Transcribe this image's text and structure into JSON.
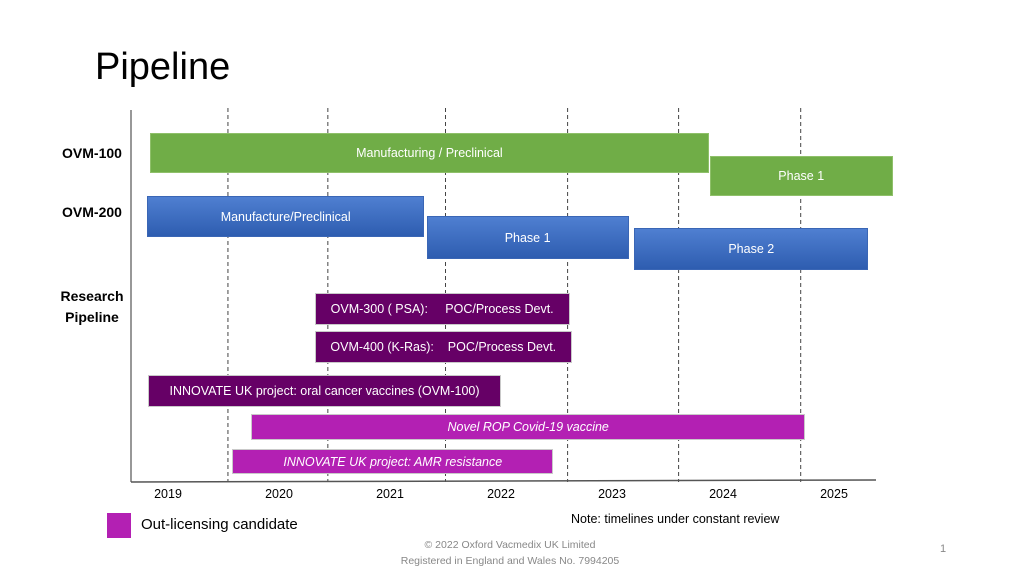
{
  "title": "Pipeline",
  "chart_data": {
    "type": "gantt",
    "x_unit": "year",
    "xlim": [
      2018.7,
      2025.5
    ],
    "x_ticks": [
      "2019",
      "2020",
      "2021",
      "2022",
      "2023",
      "2024",
      "2025"
    ],
    "x_tick_values": [
      2019,
      2020,
      2021,
      2022,
      2023,
      2024,
      2025
    ],
    "year_dividers": [
      2019.54,
      2020.44,
      2021.5,
      2022.6,
      2023.6,
      2024.7
    ],
    "row_labels": [
      "OVM-100",
      "OVM-200",
      "Research Pipeline"
    ],
    "bars": [
      {
        "label": "Manufacturing / Preclinical",
        "group": "OVM-100",
        "start": 2018.84,
        "end": 2023.87,
        "color": "#70ad47",
        "italic": false
      },
      {
        "label": "Phase 1",
        "group": "OVM-100",
        "start": 2023.88,
        "end": 2025.53,
        "color": "#70ad47",
        "italic": false
      },
      {
        "label": "Manufacture/Preclinical",
        "group": "OVM-200",
        "start": 2018.81,
        "end": 2021.31,
        "color": "#4472c4",
        "italic": false
      },
      {
        "label": "Phase 1",
        "group": "OVM-200",
        "start": 2021.33,
        "end": 2023.15,
        "color": "#4472c4",
        "italic": false
      },
      {
        "label": "Phase 2",
        "group": "OVM-200",
        "start": 2023.2,
        "end": 2025.31,
        "color": "#4472c4",
        "italic": false
      },
      {
        "label": "OVM-300 ( PSA):     POC/Process Devt.",
        "group": "Research Pipeline",
        "start": 2020.32,
        "end": 2022.62,
        "color": "#660066",
        "italic": false
      },
      {
        "label": "OVM-400 (K-Ras):    POC/Process Devt.",
        "group": "Research Pipeline",
        "start": 2020.32,
        "end": 2022.64,
        "color": "#660066",
        "italic": false
      },
      {
        "label": "INNOVATE UK project: oral cancer vaccines (OVM-100)",
        "group": "Research Pipeline",
        "start": 2018.82,
        "end": 2022.0,
        "color": "#660066",
        "italic": false
      },
      {
        "label": "Novel ROP Covid-19 vaccine",
        "group": "Research Pipeline",
        "start": 2019.75,
        "end": 2024.74,
        "color": "#b320b3",
        "italic": true
      },
      {
        "label": "INNOVATE UK project: AMR resistance",
        "group": "Research Pipeline",
        "start": 2019.58,
        "end": 2022.47,
        "color": "#b320b3",
        "italic": true
      }
    ],
    "legend": [
      {
        "label": "Out-licensing candidate",
        "color": "#b320b3"
      }
    ]
  },
  "note": "Note: timelines under  constant review",
  "footer": {
    "line1": "© 2022 Oxford Vacmedix UK Limited",
    "line2": "Registered in England and Wales No.  7994205"
  },
  "page_number": "1"
}
